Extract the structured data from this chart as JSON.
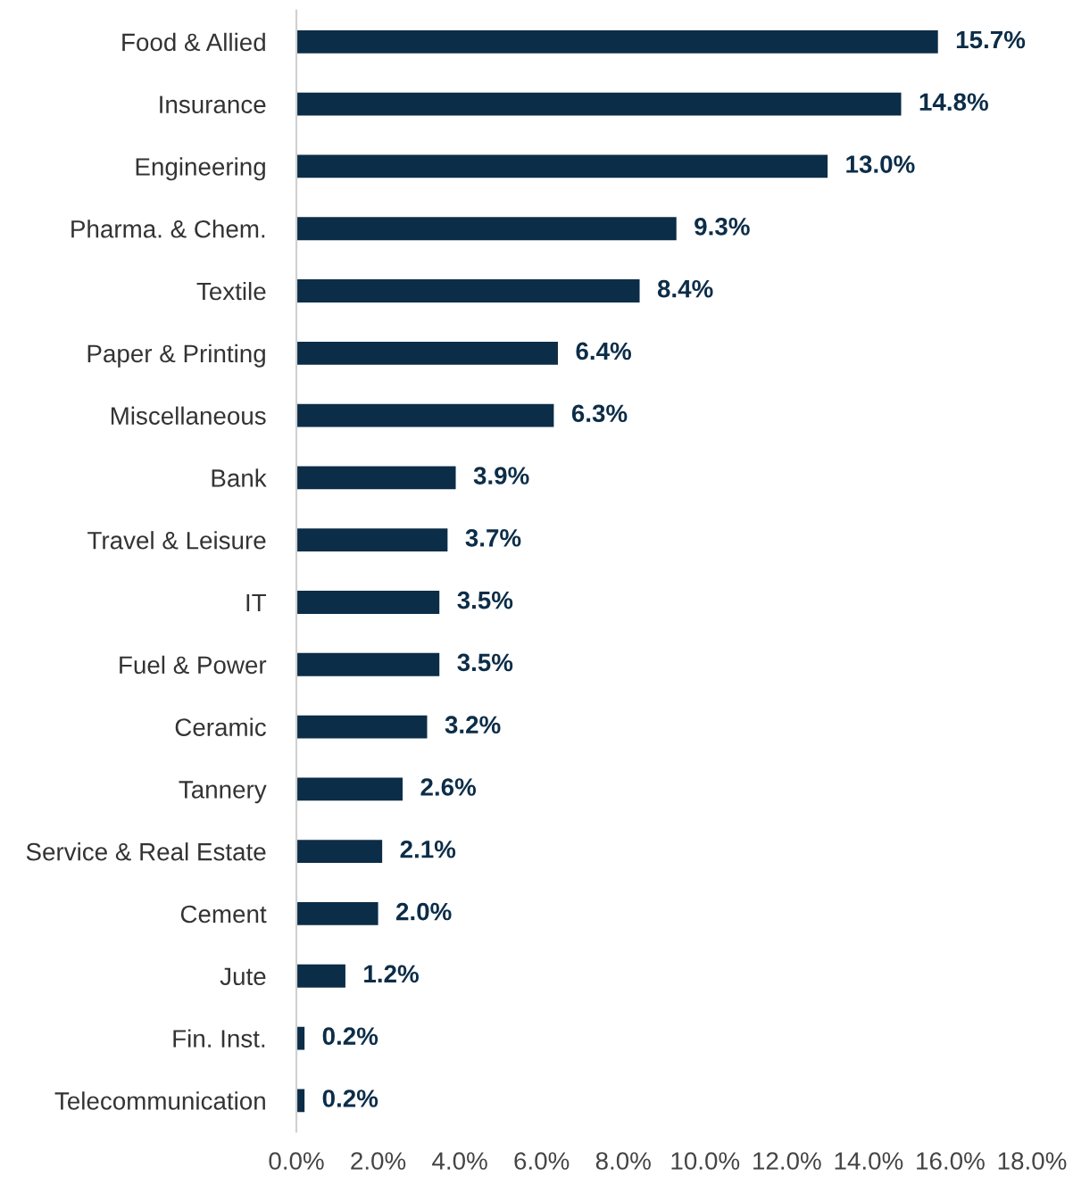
{
  "chart_data": {
    "type": "bar",
    "orientation": "horizontal",
    "categories": [
      "Food & Allied",
      "Insurance",
      "Engineering",
      "Pharma. & Chem.",
      "Textile",
      "Paper & Printing",
      "Miscellaneous",
      "Bank",
      "Travel & Leisure",
      "IT",
      "Fuel & Power",
      "Ceramic",
      "Tannery",
      "Service & Real Estate",
      "Cement",
      "Jute",
      "Fin. Inst.",
      "Telecommunication"
    ],
    "values": [
      15.7,
      14.8,
      13.0,
      9.3,
      8.4,
      6.4,
      6.3,
      3.9,
      3.7,
      3.5,
      3.5,
      3.2,
      2.6,
      2.1,
      2.0,
      1.2,
      0.2,
      0.2
    ],
    "value_labels": [
      "15.7%",
      "14.8%",
      "13.0%",
      "9.3%",
      "8.4%",
      "6.4%",
      "6.3%",
      "3.9%",
      "3.7%",
      "3.5%",
      "3.5%",
      "3.2%",
      "2.6%",
      "2.1%",
      "2.0%",
      "1.2%",
      "0.2%",
      "0.2%"
    ],
    "color": "#0c2d48",
    "xlim": [
      0,
      18
    ],
    "xticks": [
      {
        "value": 0,
        "label": "0.0%"
      },
      {
        "value": 2,
        "label": "2.0%"
      },
      {
        "value": 4,
        "label": "4.0%"
      },
      {
        "value": 6,
        "label": "6.0%"
      },
      {
        "value": 8,
        "label": "8.0%"
      },
      {
        "value": 10,
        "label": "10.0%"
      },
      {
        "value": 12,
        "label": "12.0%"
      },
      {
        "value": 14,
        "label": "14.0%"
      },
      {
        "value": 16,
        "label": "16.0%"
      },
      {
        "value": 18,
        "label": "18.0%"
      }
    ],
    "grid": false,
    "legend": false
  }
}
